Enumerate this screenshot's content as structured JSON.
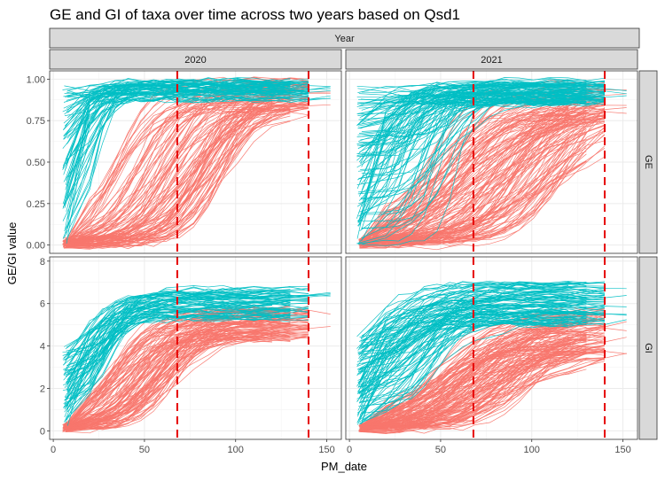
{
  "chart_data": {
    "type": "line",
    "title": "GE and GI of taxa over time across two years based on Qsd1",
    "xlabel": "PM_date",
    "ylabel": "GE/GI value",
    "facet_col_header": "Year",
    "facet_cols": [
      "2020",
      "2021"
    ],
    "facet_rows": [
      "GE",
      "GI"
    ],
    "x_ticks": [
      "0",
      "50",
      "100",
      "150"
    ],
    "x_tick_values": [
      0,
      50,
      100,
      150
    ],
    "xlim": [
      -2,
      158
    ],
    "rows": {
      "GE": {
        "ylim": [
          -0.05,
          1.05
        ],
        "y_ticks": [
          "0.00",
          "0.25",
          "0.50",
          "0.75",
          "1.00"
        ],
        "y_tick_values": [
          0,
          0.25,
          0.5,
          0.75,
          1.0
        ]
      },
      "GI": {
        "ylim": [
          -0.4,
          8.2
        ],
        "y_ticks": [
          "0",
          "2",
          "4",
          "6",
          "8"
        ],
        "y_tick_values": [
          0,
          2,
          4,
          6,
          8
        ]
      }
    },
    "reference_lines_x": [
      68,
      140
    ],
    "reference_line_color": "#e60000",
    "series_colors": {
      "group_a": "#f8766d",
      "group_b": "#00bfc4"
    },
    "grid": true,
    "legend": "none",
    "panel_background": "#ffffff",
    "strip_background": "#d9d9d9"
  }
}
